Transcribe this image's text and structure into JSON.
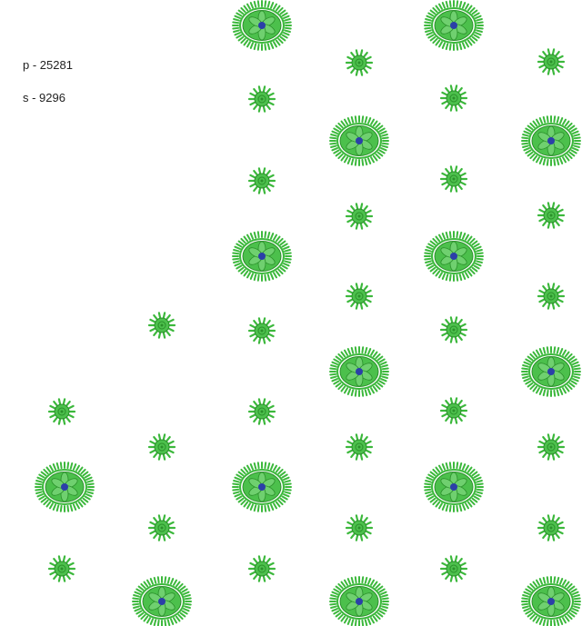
{
  "labels": {
    "p": "p - 25281",
    "s": "s - 9296"
  },
  "colors": {
    "motif_green": "#3cb83c",
    "motif_dark_green": "#2a8f2a",
    "center_blue": "#2b3fa8"
  },
  "motifs": {
    "large": "flower-medallion",
    "small": "sun-burst"
  }
}
